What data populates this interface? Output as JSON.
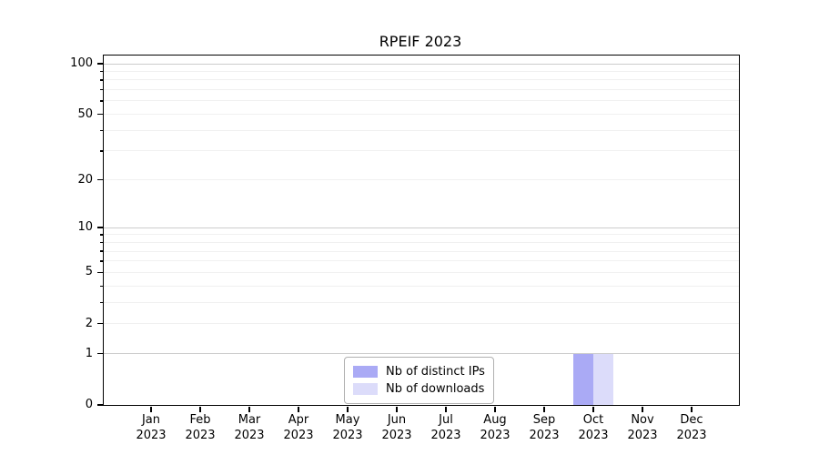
{
  "chart_data": {
    "type": "bar",
    "title": "RPEIF 2023",
    "categories": [
      "Jan",
      "Feb",
      "Mar",
      "Apr",
      "May",
      "Jun",
      "Jul",
      "Aug",
      "Sep",
      "Oct",
      "Nov",
      "Dec"
    ],
    "category_year": "2023",
    "series": [
      {
        "name": "Nb of distinct IPs",
        "color": "#aaaaf5",
        "values": [
          0,
          0,
          0,
          0,
          0,
          0,
          0,
          0,
          0,
          1,
          0,
          0
        ]
      },
      {
        "name": "Nb of downloads",
        "color": "#dcdcfa",
        "values": [
          0,
          0,
          0,
          0,
          0,
          0,
          0,
          0,
          0,
          1,
          0,
          0
        ]
      }
    ],
    "xlabel": "",
    "ylabel": "",
    "yscale": "log1p",
    "ylim": [
      0,
      100
    ],
    "y_tick_values": [
      0,
      1,
      2,
      5,
      10,
      20,
      50,
      100
    ],
    "y_tick_labels": [
      "0",
      "1",
      "2",
      "5",
      "10",
      "20",
      "50",
      "100"
    ],
    "y_decade_gridlines": [
      1,
      10,
      100
    ],
    "y_sub_gridlines": [
      2,
      3,
      4,
      5,
      6,
      7,
      8,
      9,
      20,
      30,
      40,
      50,
      60,
      70,
      80,
      90
    ],
    "grid": "on",
    "legend_position": "lower-center-inside"
  },
  "style_colors": {
    "bar_distinct_ips": "#aaaaf5",
    "bar_downloads": "#dcdcfa",
    "decade_grid": "#cccccc",
    "sub_grid": "#f0f0f0",
    "axis": "#000000",
    "legend_border": "#b0b0b0",
    "background": "#ffffff"
  }
}
